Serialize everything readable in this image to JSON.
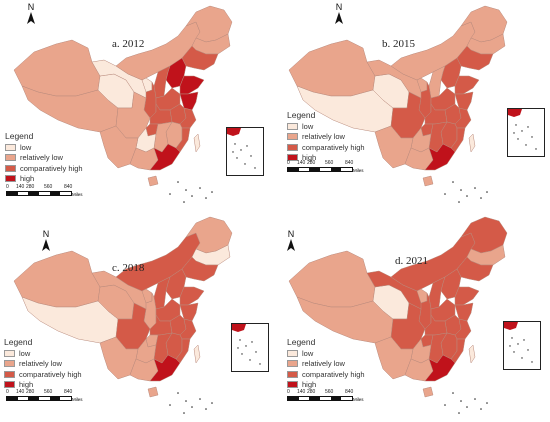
{
  "colors": {
    "low": "#fbe9dc",
    "relatively_low": "#e9a58c",
    "comparatively_high": "#d45a48",
    "high": "#c0121b"
  },
  "legend": {
    "title": "Legend",
    "items": [
      {
        "label": "low",
        "level": "low"
      },
      {
        "label": "relatively low",
        "level": "relatively_low"
      },
      {
        "label": "comparatively high",
        "level": "comparatively_high"
      },
      {
        "label": "high",
        "level": "high"
      }
    ]
  },
  "north_label": "N",
  "scale": {
    "ticks": [
      "0",
      "140",
      "280",
      "560",
      "840"
    ],
    "unit": "Miles"
  },
  "panels": [
    {
      "title": "a. 2012",
      "regions": {
        "xinjiang": "relatively_low",
        "tibet": "relatively_low",
        "qinghai": "low",
        "gansu": "low",
        "inner_mongolia": "relatively_low",
        "heilongjiang": "relatively_low",
        "jilin": "relatively_low",
        "liaoning": "comparatively_high",
        "hebei": "high",
        "beijing": "high",
        "shandong": "high",
        "shanxi": "comparatively_high",
        "shaanxi": "comparatively_high",
        "ningxia": "low",
        "sichuan": "relatively_low",
        "chongqing": "comparatively_high",
        "henan": "comparatively_high",
        "hubei": "comparatively_high",
        "anhui": "comparatively_high",
        "jiangsu": "high",
        "zhejiang": "comparatively_high",
        "jiangxi": "relatively_low",
        "hunan": "relatively_low",
        "guizhou": "low",
        "yunnan": "relatively_low",
        "guangxi": "relatively_low",
        "guangdong": "high",
        "fujian": "comparatively_high",
        "hainan": "relatively_low",
        "taiwan": "low"
      }
    },
    {
      "title": "b. 2015",
      "regions": {
        "xinjiang": "relatively_low",
        "tibet": "low",
        "qinghai": "low",
        "gansu": "relatively_low",
        "inner_mongolia": "relatively_low",
        "heilongjiang": "relatively_low",
        "jilin": "relatively_low",
        "liaoning": "comparatively_high",
        "hebei": "comparatively_high",
        "beijing": "comparatively_high",
        "shandong": "comparatively_high",
        "shanxi": "relatively_low",
        "shaanxi": "comparatively_high",
        "ningxia": "relatively_low",
        "sichuan": "comparatively_high",
        "chongqing": "comparatively_high",
        "henan": "comparatively_high",
        "hubei": "comparatively_high",
        "anhui": "comparatively_high",
        "jiangsu": "comparatively_high",
        "zhejiang": "comparatively_high",
        "jiangxi": "comparatively_high",
        "hunan": "comparatively_high",
        "guizhou": "relatively_low",
        "yunnan": "relatively_low",
        "guangxi": "relatively_low",
        "guangdong": "high",
        "fujian": "comparatively_high",
        "hainan": "relatively_low",
        "taiwan": "low"
      }
    },
    {
      "title": "c. 2018",
      "regions": {
        "xinjiang": "relatively_low",
        "tibet": "low",
        "qinghai": "relatively_low",
        "gansu": "relatively_low",
        "inner_mongolia": "comparatively_high",
        "heilongjiang": "relatively_low",
        "jilin": "low",
        "liaoning": "comparatively_high",
        "hebei": "comparatively_high",
        "beijing": "comparatively_high",
        "shandong": "comparatively_high",
        "shanxi": "comparatively_high",
        "shaanxi": "relatively_low",
        "ningxia": "relatively_low",
        "sichuan": "comparatively_high",
        "chongqing": "relatively_low",
        "henan": "comparatively_high",
        "hubei": "comparatively_high",
        "anhui": "comparatively_high",
        "jiangsu": "comparatively_high",
        "zhejiang": "comparatively_high",
        "jiangxi": "comparatively_high",
        "hunan": "comparatively_high",
        "guizhou": "relatively_low",
        "yunnan": "relatively_low",
        "guangxi": "relatively_low",
        "guangdong": "high",
        "fujian": "comparatively_high",
        "hainan": "relatively_low",
        "taiwan": "low"
      }
    },
    {
      "title": "d. 2021",
      "regions": {
        "xinjiang": "relatively_low",
        "tibet": "relatively_low",
        "qinghai": "low",
        "gansu": "comparatively_high",
        "inner_mongolia": "comparatively_high",
        "heilongjiang": "comparatively_high",
        "jilin": "relatively_low",
        "liaoning": "comparatively_high",
        "hebei": "comparatively_high",
        "beijing": "comparatively_high",
        "shandong": "comparatively_high",
        "shanxi": "comparatively_high",
        "shaanxi": "comparatively_high",
        "ningxia": "relatively_low",
        "sichuan": "comparatively_high",
        "chongqing": "comparatively_high",
        "henan": "comparatively_high",
        "hubei": "comparatively_high",
        "anhui": "comparatively_high",
        "jiangsu": "comparatively_high",
        "zhejiang": "comparatively_high",
        "jiangxi": "comparatively_high",
        "hunan": "comparatively_high",
        "guizhou": "relatively_low",
        "yunnan": "relatively_low",
        "guangxi": "relatively_low",
        "guangdong": "high",
        "fujian": "comparatively_high",
        "hainan": "relatively_low",
        "taiwan": "low"
      }
    }
  ]
}
